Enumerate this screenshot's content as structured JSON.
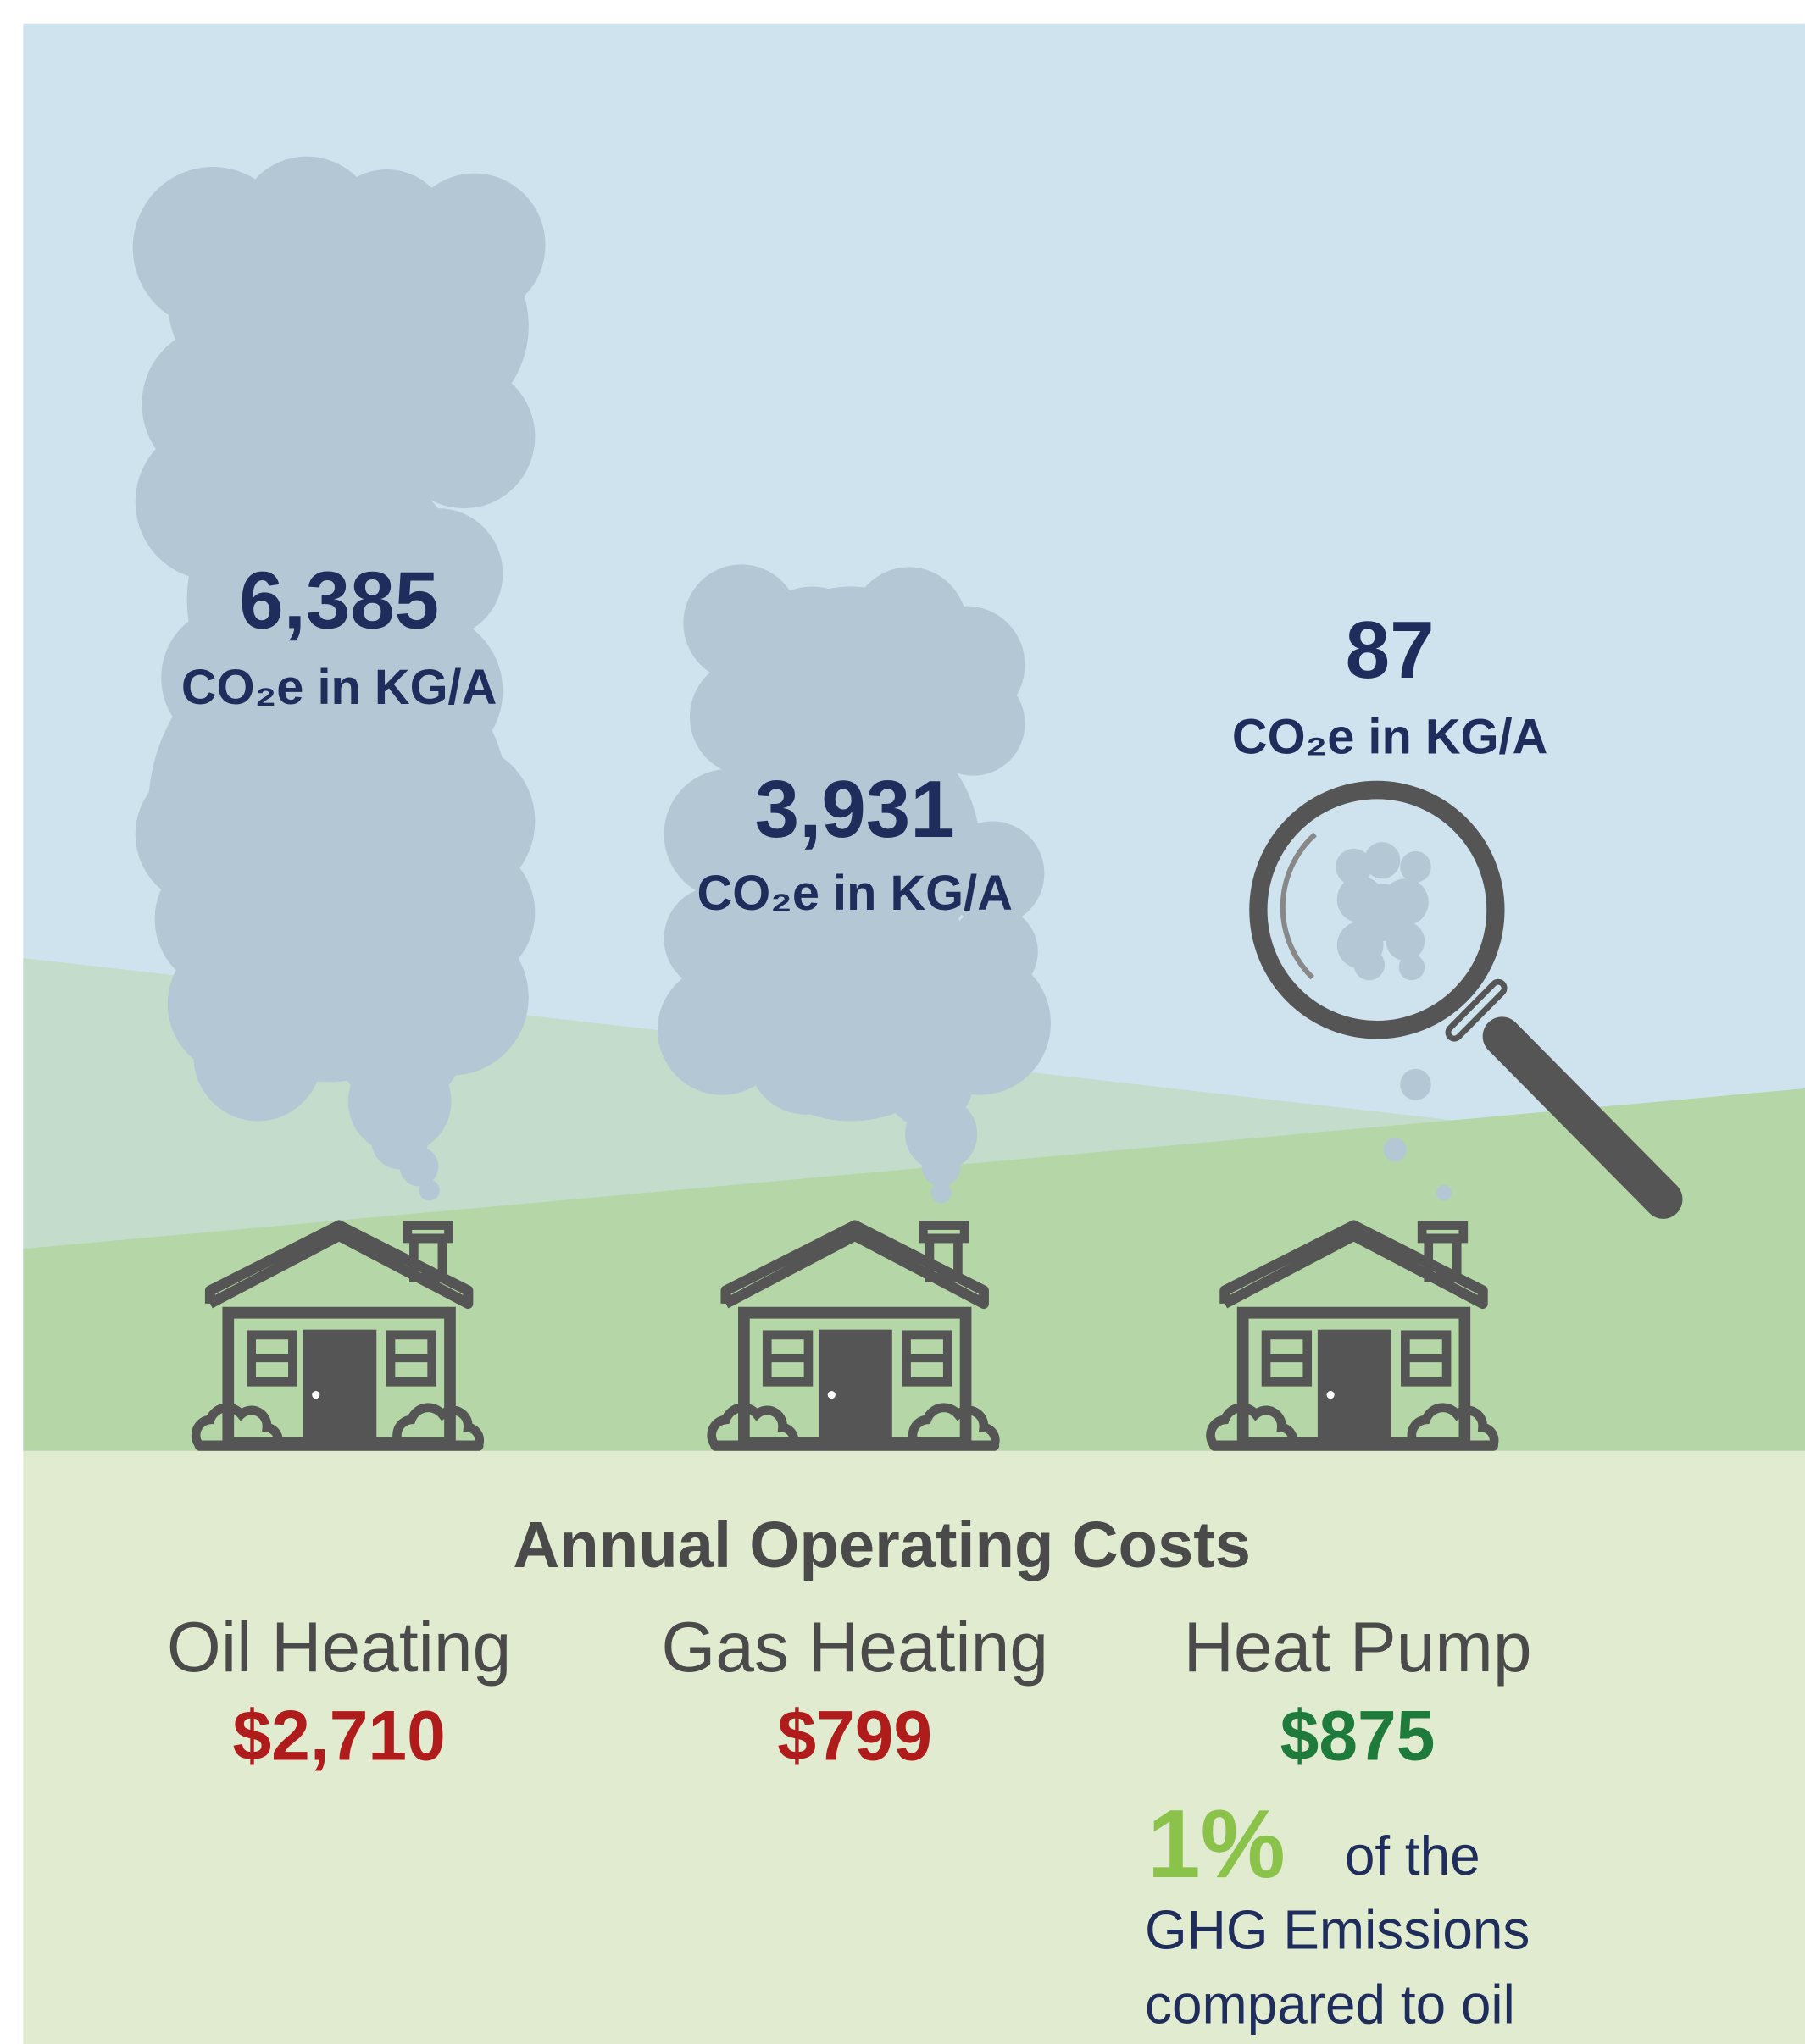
{
  "emissions": [
    {
      "value": "6,385",
      "unit": "CO₂e in KG/A"
    },
    {
      "value": "3,931",
      "unit": "CO₂e in KG/A"
    },
    {
      "value": "87",
      "unit": "CO₂e in KG/A"
    }
  ],
  "costs": {
    "title": "Annual Operating Costs",
    "items": [
      {
        "label": "Oil Heating",
        "value": "$2,710"
      },
      {
        "label": "Gas Heating",
        "value": "$799"
      },
      {
        "label": "Heat Pump",
        "value": "$875"
      }
    ]
  },
  "note": {
    "highlight": "1%",
    "lines": [
      "of the",
      "GHG Emissions",
      "compared to oil"
    ]
  }
}
